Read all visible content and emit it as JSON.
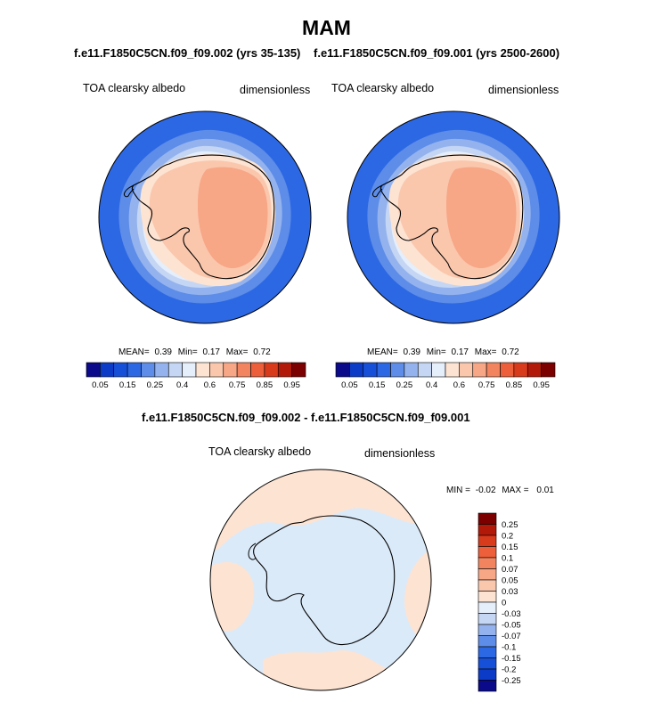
{
  "chart_data": [
    {
      "type": "heatmap",
      "projection": "south-polar-stereographic",
      "title": "f.e11.F1850C5CN.f09_f09.002 (yrs 35-135)",
      "left_label": "TOA clearsky albedo",
      "right_label": "dimensionless",
      "stats": {
        "mean_label": "MEAN=",
        "mean": "0.39",
        "min_label": "Min=",
        "min": "0.17",
        "max_label": "Max=",
        "max": "0.72"
      },
      "colorbar_ticks": [
        "0.05",
        "0.15",
        "0.25",
        "0.4",
        "0.6",
        "0.75",
        "0.85",
        "0.95"
      ],
      "colorbar_colors": [
        "#0a0a8a",
        "#0c3cc7",
        "#1750d8",
        "#2d68e4",
        "#5d8de8",
        "#94b3ee",
        "#c4d6f4",
        "#e5eefb",
        "#fde3d2",
        "#fac7ad",
        "#f7a686",
        "#f2845f",
        "#ec5f3a",
        "#d83a1c",
        "#b31908",
        "#7d0000"
      ]
    },
    {
      "type": "heatmap",
      "projection": "south-polar-stereographic",
      "title": "f.e11.F1850C5CN.f09_f09.001 (yrs 2500-2600)",
      "left_label": "TOA clearsky albedo",
      "right_label": "dimensionless",
      "stats": {
        "mean_label": "MEAN=",
        "mean": "0.39",
        "min_label": "Min=",
        "min": "0.17",
        "max_label": "Max=",
        "max": "0.72"
      },
      "colorbar_ticks": [
        "0.05",
        "0.15",
        "0.25",
        "0.4",
        "0.6",
        "0.75",
        "0.85",
        "0.95"
      ],
      "colorbar_colors": [
        "#0a0a8a",
        "#0c3cc7",
        "#1750d8",
        "#2d68e4",
        "#5d8de8",
        "#94b3ee",
        "#c4d6f4",
        "#e5eefb",
        "#fde3d2",
        "#fac7ad",
        "#f7a686",
        "#f2845f",
        "#ec5f3a",
        "#d83a1c",
        "#b31908",
        "#7d0000"
      ]
    },
    {
      "type": "heatmap",
      "projection": "south-polar-stereographic",
      "title": "f.e11.F1850C5CN.f09_f09.002 - f.e11.F1850C5CN.f09_f09.001",
      "left_label": "TOA clearsky albedo",
      "right_label": "dimensionless",
      "stats": {
        "min_label": "MIN =",
        "min": "-0.02",
        "max_label": "MAX =",
        "max": "0.01"
      },
      "colorbar_ticks": [
        "0.25",
        "0.2",
        "0.15",
        "0.1",
        "0.07",
        "0.05",
        "0.03",
        "0",
        "-0.03",
        "-0.05",
        "-0.07",
        "-0.1",
        "-0.15",
        "-0.2",
        "-0.25"
      ],
      "colorbar_colors": [
        "#7d0000",
        "#b31908",
        "#d83a1c",
        "#ec5f3a",
        "#f2845f",
        "#f7a686",
        "#fac7ad",
        "#fde3d2",
        "#e5eefb",
        "#c4d6f4",
        "#94b3ee",
        "#5d8de8",
        "#2d68e4",
        "#1750d8",
        "#0c3cc7",
        "#0a0a8a"
      ]
    }
  ],
  "page": {
    "title": "MAM"
  },
  "colors": {
    "ocean_blue": "#2d68e4",
    "ice_light": "#fde3d2",
    "ice_mid": "#fac7ad",
    "ice_dark": "#f7a686",
    "diff_blue": "#dbeaf9",
    "diff_peach": "#fde3d2"
  }
}
